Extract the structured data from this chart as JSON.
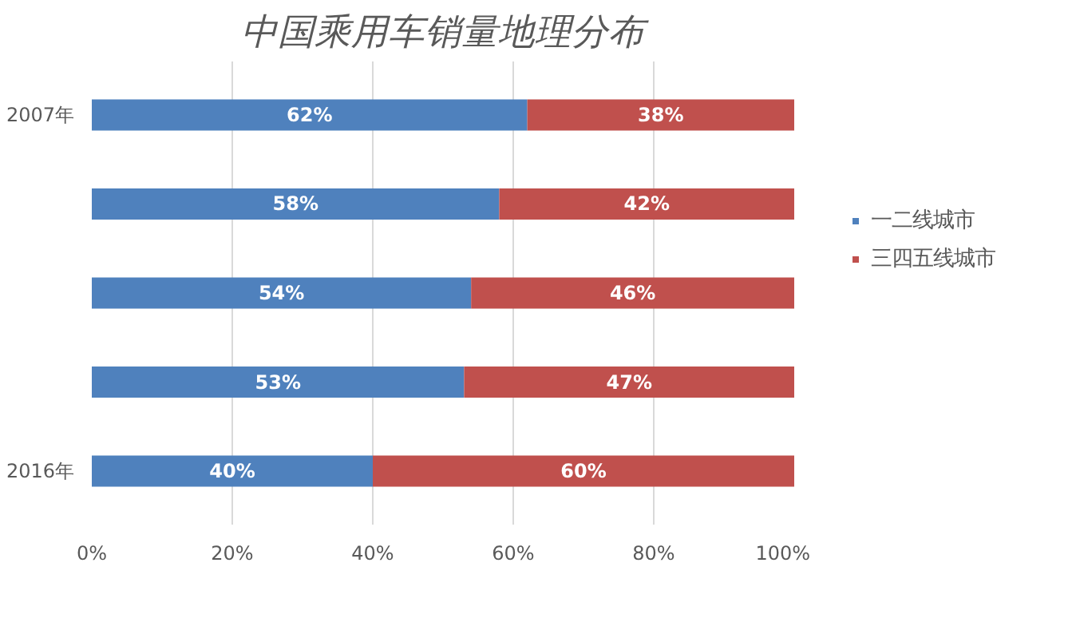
{
  "chart_data": {
    "type": "bar",
    "orientation": "horizontal",
    "stacked": true,
    "title": "中国乘用车销量地理分布",
    "categories": [
      "2007年",
      null,
      null,
      null,
      "2016年"
    ],
    "series": [
      {
        "name": "一二线城市",
        "color": "#4f81bd",
        "values": [
          62,
          58,
          54,
          53,
          40
        ],
        "value_labels": [
          "62%",
          "58%",
          "54%",
          "53%",
          "40%"
        ]
      },
      {
        "name": "三四五线城市",
        "color": "#c0504d",
        "values": [
          38,
          42,
          46,
          47,
          60
        ],
        "value_labels": [
          "38%",
          "42%",
          "46%",
          "47%",
          "60%"
        ]
      }
    ],
    "xlim": [
      0,
      100
    ],
    "xticks": [
      {
        "value": 0,
        "label": "0%"
      },
      {
        "value": 20,
        "label": "20%"
      },
      {
        "value": 40,
        "label": "40%"
      },
      {
        "value": 60,
        "label": "60%"
      },
      {
        "value": 80,
        "label": "80%"
      },
      {
        "value": 100,
        "label": "100%"
      }
    ],
    "grid": "x",
    "legend": "right"
  }
}
